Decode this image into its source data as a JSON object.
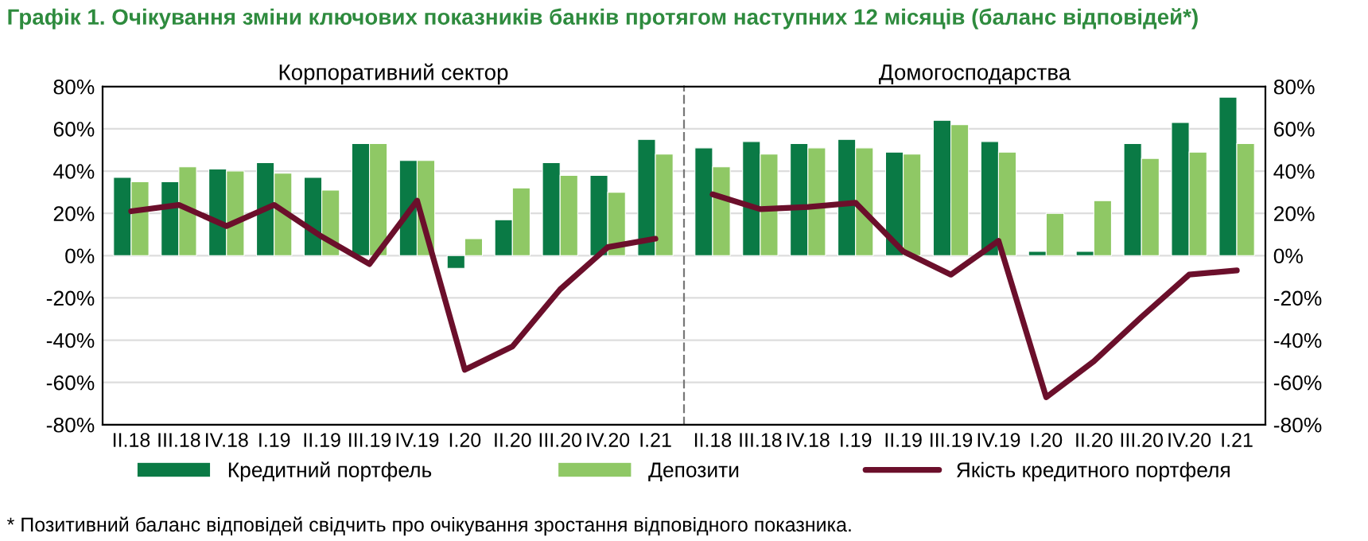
{
  "chart_data": [
    {
      "type": "bar",
      "title": "Графік 1. Очікування зміни ключових показників банків протягом наступних 12 місяців (баланс відповідей*)",
      "subtitle": "Корпоративний сектор",
      "categories": [
        "II.18",
        "III.18",
        "IV.18",
        "I.19",
        "II.19",
        "III.19",
        "IV.19",
        "I.20",
        "II.20",
        "III.20",
        "IV.20",
        "I.21"
      ],
      "series": [
        {
          "name": "Кредитний портфель",
          "color": "#0a7a45",
          "values": [
            37,
            35,
            41,
            44,
            37,
            53,
            45,
            -6,
            17,
            44,
            38,
            55
          ]
        },
        {
          "name": "Депозити",
          "color": "#8fc865",
          "values": [
            35,
            42,
            40,
            39,
            31,
            53,
            45,
            8,
            32,
            38,
            30,
            48
          ]
        },
        {
          "name": "Якість кредитного портфеля",
          "type": "line",
          "color": "#6b0f2b",
          "values": [
            21,
            24,
            14,
            24,
            9,
            -4,
            26,
            -54,
            -43,
            -16,
            4,
            8
          ]
        }
      ],
      "ylim": [
        -80,
        80
      ],
      "yticks": [
        {
          "value": -80,
          "label": "-80%"
        },
        {
          "value": -60,
          "label": "-60%"
        },
        {
          "value": -40,
          "label": "-40%"
        },
        {
          "value": -20,
          "label": "-20%"
        },
        {
          "value": 0,
          "label": "0%"
        },
        {
          "value": 20,
          "label": "20%"
        },
        {
          "value": 40,
          "label": "40%"
        },
        {
          "value": 60,
          "label": "60%"
        },
        {
          "value": 80,
          "label": "80%"
        }
      ],
      "grid": "y",
      "legend": "bottom",
      "annotations": [
        "* Позитивний баланс відповідей свідчить про очікування зростання відповідного показника."
      ]
    },
    {
      "type": "bar",
      "subtitle": "Домогосподарства",
      "categories": [
        "II.18",
        "III.18",
        "IV.18",
        "I.19",
        "II.19",
        "III.19",
        "IV.19",
        "I.20",
        "II.20",
        "III.20",
        "IV.20",
        "I.21"
      ],
      "series": [
        {
          "color": "#0a7a45",
          "values": [
            51,
            54,
            53,
            55,
            49,
            64,
            54,
            2,
            2,
            53,
            63,
            75
          ]
        },
        {
          "color": "#8fc865",
          "values": [
            42,
            48,
            51,
            51,
            48,
            62,
            49,
            20,
            26,
            46,
            49,
            53
          ]
        },
        {
          "type": "line",
          "color": "#6b0f2b",
          "values": [
            29,
            22,
            23,
            25,
            2,
            -9,
            7,
            -67,
            -50,
            -29,
            -9,
            -7
          ]
        }
      ],
      "ylim": [
        -80,
        80
      ],
      "yticks": [
        {
          "value": -80,
          "label": "-80%"
        },
        {
          "value": -60,
          "label": "-60%"
        },
        {
          "value": -40,
          "label": "-40%"
        },
        {
          "value": -20,
          "label": "-20%"
        },
        {
          "value": 0,
          "label": "0%"
        },
        {
          "value": 20,
          "label": "20%"
        },
        {
          "value": 40,
          "label": "40%"
        },
        {
          "value": 60,
          "label": "60%"
        },
        {
          "value": 80,
          "label": "80%"
        }
      ],
      "grid": "y"
    }
  ]
}
